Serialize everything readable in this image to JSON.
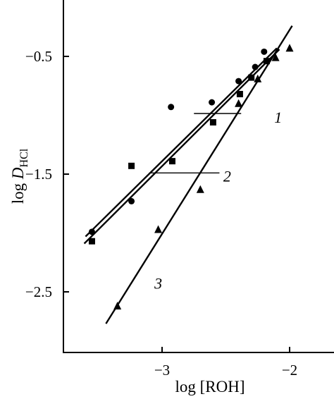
{
  "chart_data": {
    "type": "scatter",
    "xlabel": "log [ROH]",
    "ylabel_main": "log ",
    "ylabel_D": "D",
    "ylabel_sub": "HCl",
    "xlim": [
      -3.75,
      -1.75
    ],
    "ylim": [
      -3.0,
      0.0
    ],
    "xticks": [
      -3,
      -2
    ],
    "xtick_labels": [
      "−3",
      "−2"
    ],
    "yticks": [
      -0.5,
      -1.5,
      -2.5
    ],
    "ytick_labels": [
      "−0.5",
      "−1.5",
      "−2.5"
    ],
    "grid": false,
    "series": [
      {
        "name": "1",
        "marker": "circle",
        "points": [
          {
            "x": -3.55,
            "y": -1.99
          },
          {
            "x": -3.24,
            "y": -1.73
          },
          {
            "x": -2.93,
            "y": -0.93
          },
          {
            "x": -2.61,
            "y": -0.89
          },
          {
            "x": -2.4,
            "y": -0.71
          },
          {
            "x": -2.27,
            "y": -0.59
          },
          {
            "x": -2.2,
            "y": -0.46
          }
        ],
        "fit": {
          "x1": -3.6,
          "y1": -2.03,
          "x2": -2.1,
          "y2": -0.43
        },
        "leader": {
          "x1": -2.75,
          "y1": -0.985,
          "x2": -2.38,
          "y2": -0.985
        }
      },
      {
        "name": "2",
        "marker": "square",
        "points": [
          {
            "x": -3.55,
            "y": -2.07
          },
          {
            "x": -3.24,
            "y": -1.43
          },
          {
            "x": -2.92,
            "y": -1.39
          },
          {
            "x": -2.6,
            "y": -1.06
          },
          {
            "x": -2.39,
            "y": -0.82
          },
          {
            "x": -2.3,
            "y": -0.68
          },
          {
            "x": -2.18,
            "y": -0.54
          }
        ],
        "fit": {
          "x1": -3.61,
          "y1": -2.09,
          "x2": -2.08,
          "y2": -0.44
        },
        "leader": {
          "x1": -3.1,
          "y1": -1.49,
          "x2": -2.55,
          "y2": -1.49
        }
      },
      {
        "name": "3",
        "marker": "triangle",
        "points": [
          {
            "x": -3.35,
            "y": -2.62
          },
          {
            "x": -3.03,
            "y": -1.97
          },
          {
            "x": -2.7,
            "y": -1.63
          },
          {
            "x": -2.4,
            "y": -0.9
          },
          {
            "x": -2.25,
            "y": -0.69
          },
          {
            "x": -2.11,
            "y": -0.51
          },
          {
            "x": -2.0,
            "y": -0.43
          }
        ],
        "fit": {
          "x1": -3.44,
          "y1": -2.77,
          "x2": -1.98,
          "y2": -0.24
        }
      }
    ],
    "series_label_positions": {
      "1": {
        "x": -2.12,
        "y": -1.02
      },
      "2": {
        "x": -2.52,
        "y": -1.52
      },
      "3": {
        "x": -3.06,
        "y": -2.43
      }
    }
  }
}
